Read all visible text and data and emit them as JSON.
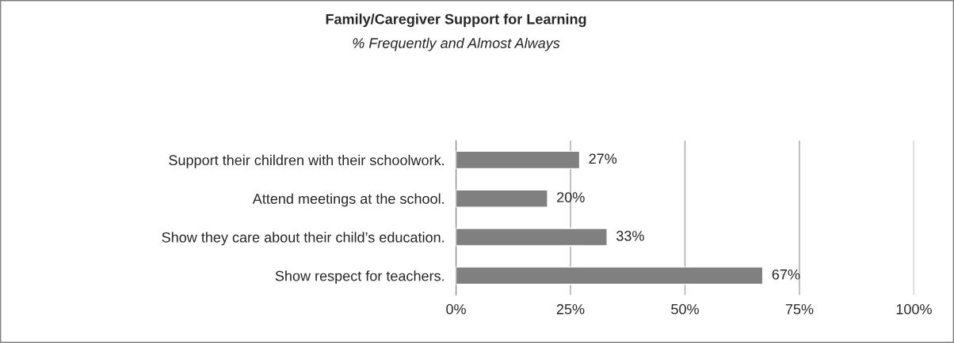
{
  "chart_data": {
    "type": "bar",
    "orientation": "horizontal",
    "title": "Family/Caregiver Support for Learning",
    "subtitle": "% Frequently and Almost Always",
    "categories": [
      "Support their children with their schoolwork.",
      "Attend meetings at the school.",
      "Show they care about their child’s education.",
      "Show respect for teachers."
    ],
    "values": [
      27,
      20,
      33,
      67
    ],
    "value_labels": [
      "27%",
      "20%",
      "33%",
      "67%"
    ],
    "color": "#808080",
    "xlim": [
      0,
      100
    ],
    "xticks": [
      {
        "value": 0,
        "label": "0%"
      },
      {
        "value": 25,
        "label": "25%"
      },
      {
        "value": 50,
        "label": "50%"
      },
      {
        "value": 75,
        "label": "75%"
      },
      {
        "value": 100,
        "label": "100%"
      }
    ],
    "grid": "x",
    "legend": false
  }
}
